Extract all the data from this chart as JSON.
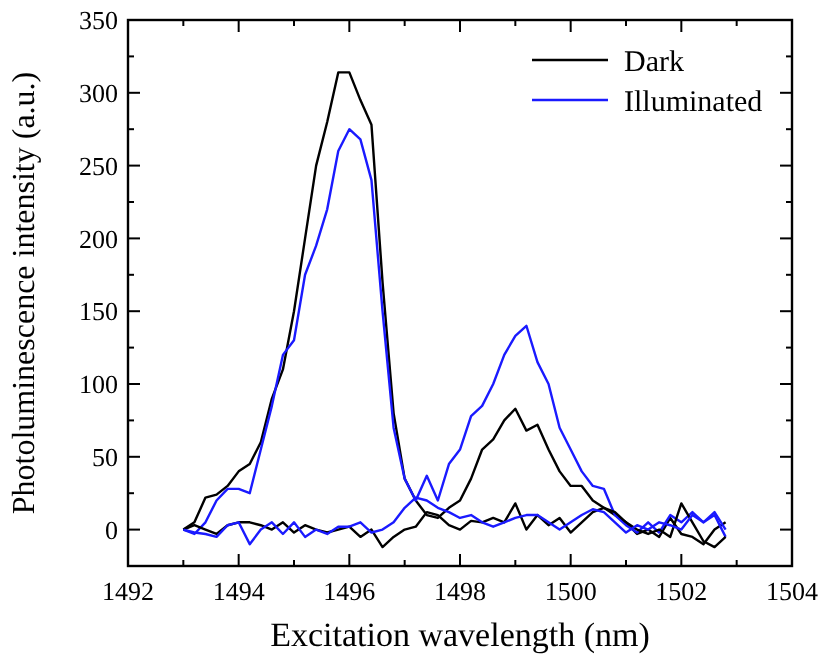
{
  "chart_data": {
    "type": "line",
    "xlabel": "Excitation wavelength (nm)",
    "ylabel": "Photoluminescence intensity (a.u.)",
    "xlim": [
      1492,
      1504
    ],
    "xticks": [
      1492,
      {
        "value": 1493,
        "label": null
      },
      1494,
      {
        "value": 1495,
        "label": null
      },
      1496,
      {
        "value": 1497,
        "label": null
      },
      1498,
      {
        "value": 1499,
        "label": null
      },
      1500,
      {
        "value": 1501,
        "label": null
      },
      1502,
      {
        "value": 1503,
        "label": null
      },
      1504
    ],
    "ylim": [
      -25,
      350
    ],
    "yticks": [
      {
        "value": -25,
        "label": null
      },
      0,
      {
        "value": 25,
        "label": null
      },
      50,
      {
        "value": 75,
        "label": null
      },
      100,
      {
        "value": 125,
        "label": null
      },
      150,
      {
        "value": 175,
        "label": null
      },
      200,
      {
        "value": 225,
        "label": null
      },
      250,
      {
        "value": 275,
        "label": null
      },
      300,
      {
        "value": 325,
        "label": null
      },
      350
    ],
    "legend": "top right",
    "grid": false,
    "marker": "none",
    "line_style": "solid",
    "x": [
      1493.0,
      1493.2,
      1493.4,
      1493.6,
      1493.8,
      1494.0,
      1494.2,
      1494.4,
      1494.6,
      1494.8,
      1495.0,
      1495.2,
      1495.4,
      1495.6,
      1495.8,
      1496.0,
      1496.2,
      1496.4,
      1496.6,
      1496.8,
      1497.0,
      1497.2,
      1497.4,
      1497.6,
      1497.8,
      1498.0,
      1498.2,
      1498.4,
      1498.6,
      1498.8,
      1499.0,
      1499.2,
      1499.4,
      1499.6,
      1499.8,
      1500.0,
      1500.2,
      1500.4,
      1500.6,
      1500.8,
      1501.0,
      1501.2,
      1501.4,
      1501.6,
      1501.8,
      1502.0,
      1502.2,
      1502.4,
      1502.6,
      1502.8
    ],
    "series": [
      {
        "name": "Dark",
        "color": "#000000",
        "values": [
          0,
          5,
          22,
          24,
          30,
          40,
          45,
          60,
          90,
          110,
          150,
          200,
          250,
          280,
          314,
          314,
          295,
          278,
          170,
          80,
          35,
          20,
          10,
          8,
          15,
          20,
          35,
          55,
          62,
          75,
          83,
          68,
          72,
          55,
          40,
          30,
          30,
          20,
          15,
          10,
          5,
          -3,
          0,
          -5,
          8,
          -3,
          -5,
          -10,
          0,
          5
        ]
      },
      {
        "name": "Illuminated",
        "color": "#1a1aff",
        "values": [
          0,
          -3,
          5,
          20,
          28,
          28,
          25,
          55,
          85,
          120,
          130,
          175,
          195,
          220,
          260,
          275,
          268,
          240,
          150,
          70,
          35,
          20,
          37,
          20,
          45,
          55,
          78,
          85,
          100,
          120,
          133,
          140,
          115,
          100,
          70,
          55,
          40,
          30,
          28,
          10,
          3,
          -2,
          5,
          -2,
          10,
          5,
          12,
          5,
          10,
          -5
        ]
      },
      {
        "color": "#000000",
        "values": [
          0,
          3,
          0,
          -3,
          3,
          5,
          5,
          3,
          0,
          5,
          -2,
          3,
          0,
          -2,
          0,
          2,
          -5,
          0,
          -12,
          -5,
          0,
          2,
          12,
          10,
          3,
          0,
          6,
          5,
          8,
          5,
          18,
          0,
          10,
          3,
          8,
          -2,
          5,
          12,
          15,
          12,
          5,
          0,
          -3,
          0,
          -5,
          18,
          5,
          -8,
          -12,
          -5
        ]
      },
      {
        "color": "#1a1aff",
        "values": [
          0,
          -2,
          -3,
          -5,
          3,
          5,
          -10,
          0,
          5,
          -3,
          5,
          -5,
          0,
          -3,
          2,
          2,
          5,
          -2,
          0,
          5,
          15,
          22,
          20,
          15,
          12,
          8,
          10,
          5,
          2,
          5,
          8,
          10,
          10,
          5,
          0,
          5,
          10,
          14,
          12,
          5,
          -2,
          3,
          0,
          5,
          3,
          0,
          10,
          5,
          12,
          0
        ]
      }
    ]
  }
}
